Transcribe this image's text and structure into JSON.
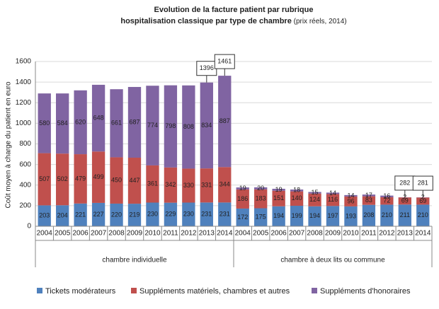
{
  "chart_data": {
    "type": "bar",
    "stacked": true,
    "title": [
      "Evolution de la facture patient par rubrique",
      "hospitalisation classique par type de chambre"
    ],
    "subtitle": "(prix réels, 2014)",
    "y_label": "Coût moyen à charge du patient en euro",
    "groups": [
      {
        "label": "chambre individuelle",
        "categories": [
          "2004",
          "2005",
          "2006",
          "2007",
          "2008",
          "2009",
          "2010",
          "2011",
          "2012",
          "2013",
          "2014"
        ]
      },
      {
        "label": "chambre à deux lits ou commune",
        "categories": [
          "2004",
          "2005",
          "2006",
          "2007",
          "2008",
          "2009",
          "2010",
          "2011",
          "2012",
          "2013",
          "2014"
        ]
      }
    ],
    "series": [
      {
        "name": "Tickets modérateurs",
        "color": "#4f81bd",
        "values": [
          203,
          204,
          221,
          227,
          220,
          219,
          230,
          229,
          230,
          231,
          231,
          172,
          175,
          194,
          199,
          194,
          197,
          193,
          208,
          210,
          211,
          210
        ]
      },
      {
        "name": "Suppléments matériels, chambres et autres",
        "color": "#c0504d",
        "values": [
          507,
          502,
          479,
          499,
          450,
          447,
          361,
          342,
          330,
          331,
          344,
          186,
          183,
          151,
          140,
          124,
          116,
          96,
          83,
          72,
          69,
          69
        ]
      },
      {
        "name": "Suppléments d'honoraires",
        "color": "#8064a2",
        "values": [
          580,
          584,
          620,
          648,
          661,
          687,
          774,
          798,
          808,
          834,
          887,
          19,
          20,
          19,
          18,
          15,
          14,
          14,
          17,
          16,
          2,
          2
        ]
      }
    ],
    "total_labels": [
      null,
      null,
      null,
      null,
      null,
      null,
      null,
      null,
      null,
      1396,
      1461,
      null,
      null,
      null,
      null,
      null,
      null,
      null,
      null,
      null,
      282,
      281
    ],
    "ylim": [
      0,
      1600
    ],
    "yticks": [
      0,
      200,
      400,
      600,
      800,
      1000,
      1200,
      1400,
      1600
    ],
    "grid": true,
    "legend": "bottom"
  }
}
